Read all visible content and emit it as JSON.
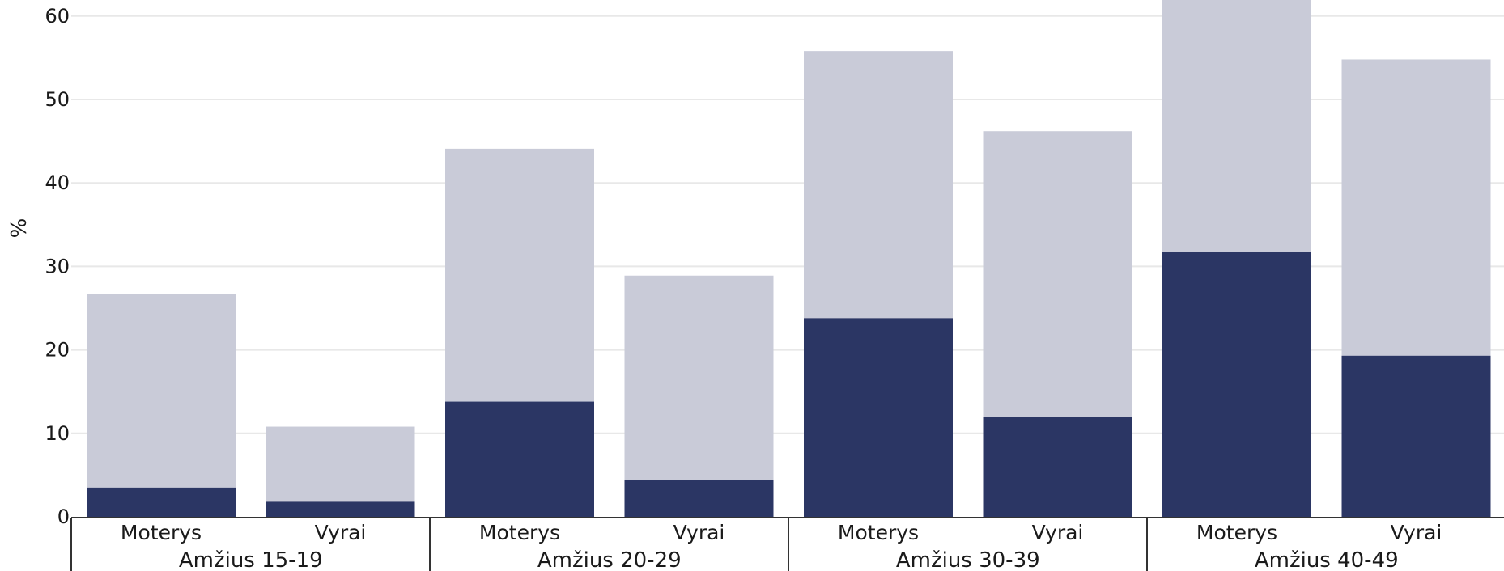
{
  "chart_data": {
    "type": "bar",
    "stacked": true,
    "ylabel": "%",
    "ylim": [
      0,
      62
    ],
    "yticks": [
      0,
      10,
      20,
      30,
      40,
      50,
      60
    ],
    "grid": true,
    "colors": {
      "dark": "#2b3664",
      "light": "#c9cbd8"
    },
    "groups": [
      {
        "label": "Amžius 15-19",
        "bars": [
          {
            "label": "Moterys",
            "dark": 3.5,
            "total": 26.7
          },
          {
            "label": "Vyrai",
            "dark": 1.8,
            "total": 10.8
          }
        ]
      },
      {
        "label": "Amžius 20-29",
        "bars": [
          {
            "label": "Moterys",
            "dark": 13.8,
            "total": 44.1
          },
          {
            "label": "Vyrai",
            "dark": 4.4,
            "total": 28.9
          }
        ]
      },
      {
        "label": "Amžius 30-39",
        "bars": [
          {
            "label": "Moterys",
            "dark": 23.8,
            "total": 55.8
          },
          {
            "label": "Vyrai",
            "dark": 12.0,
            "total": 46.2
          }
        ]
      },
      {
        "label": "Amžius 40-49",
        "bars": [
          {
            "label": "Moterys",
            "dark": 31.7,
            "total": 62.0
          },
          {
            "label": "Vyrai",
            "dark": 19.3,
            "total": 54.8
          }
        ]
      }
    ]
  }
}
